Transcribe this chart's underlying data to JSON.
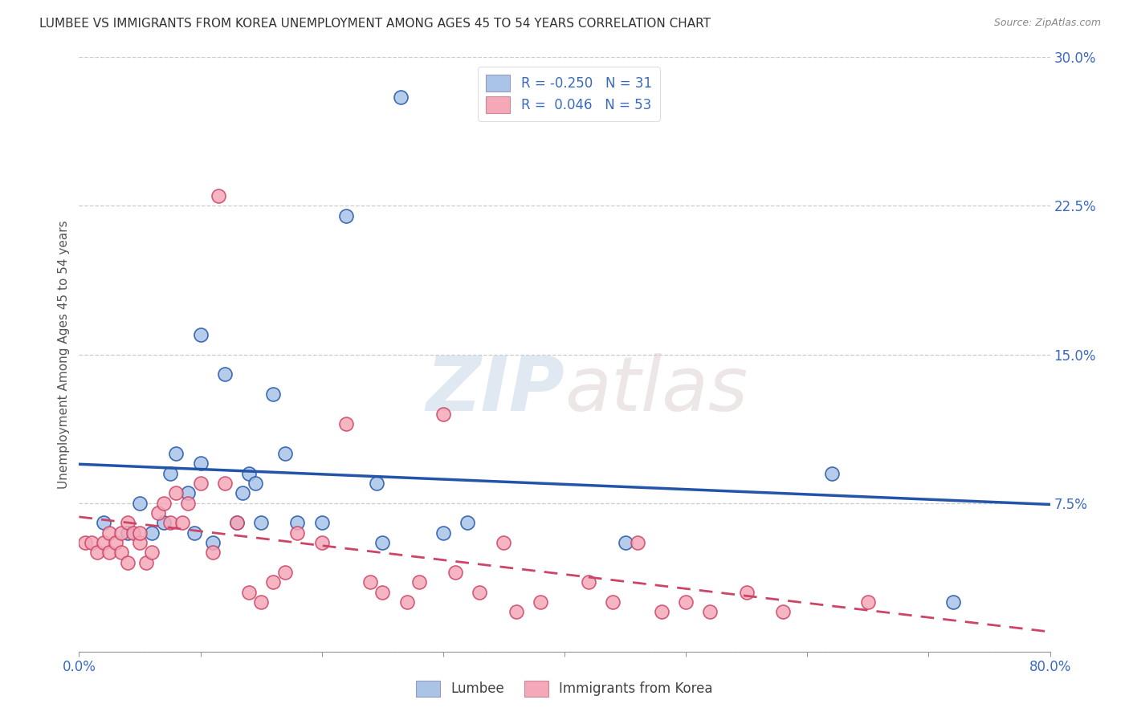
{
  "title": "LUMBEE VS IMMIGRANTS FROM KOREA UNEMPLOYMENT AMONG AGES 45 TO 54 YEARS CORRELATION CHART",
  "source": "Source: ZipAtlas.com",
  "ylabel": "Unemployment Among Ages 45 to 54 years",
  "xlabel_lumbee": "Lumbee",
  "xlabel_korea": "Immigrants from Korea",
  "xlim": [
    0.0,
    0.8
  ],
  "ylim": [
    0.0,
    0.3
  ],
  "xticks": [
    0.0,
    0.1,
    0.2,
    0.3,
    0.4,
    0.5,
    0.6,
    0.7,
    0.8
  ],
  "xticklabels": [
    "0.0%",
    "",
    "",
    "",
    "",
    "",
    "",
    "",
    "80.0%"
  ],
  "yticks": [
    0.0,
    0.075,
    0.15,
    0.225,
    0.3
  ],
  "yticklabels": [
    "",
    "7.5%",
    "15.0%",
    "22.5%",
    "30.0%"
  ],
  "grid_color": "#cccccc",
  "background_color": "#ffffff",
  "lumbee_color": "#aac4e8",
  "korea_color": "#f4a8b8",
  "lumbee_line_color": "#2255aa",
  "korea_line_color": "#cc4466",
  "legend_R_lumbee": "-0.250",
  "legend_N_lumbee": "31",
  "legend_R_korea": "0.046",
  "legend_N_korea": "53",
  "watermark_zip": "ZIP",
  "watermark_atlas": "atlas",
  "lumbee_x": [
    0.02,
    0.04,
    0.05,
    0.06,
    0.07,
    0.075,
    0.08,
    0.09,
    0.095,
    0.1,
    0.1,
    0.11,
    0.12,
    0.13,
    0.135,
    0.14,
    0.145,
    0.15,
    0.16,
    0.17,
    0.18,
    0.2,
    0.22,
    0.245,
    0.25,
    0.265,
    0.3,
    0.32,
    0.45,
    0.62,
    0.72
  ],
  "lumbee_y": [
    0.065,
    0.06,
    0.075,
    0.06,
    0.065,
    0.09,
    0.1,
    0.08,
    0.06,
    0.095,
    0.16,
    0.055,
    0.14,
    0.065,
    0.08,
    0.09,
    0.085,
    0.065,
    0.13,
    0.1,
    0.065,
    0.065,
    0.22,
    0.085,
    0.055,
    0.28,
    0.06,
    0.065,
    0.055,
    0.09,
    0.025
  ],
  "korea_x": [
    0.005,
    0.01,
    0.015,
    0.02,
    0.025,
    0.025,
    0.03,
    0.035,
    0.035,
    0.04,
    0.04,
    0.045,
    0.05,
    0.05,
    0.055,
    0.06,
    0.065,
    0.07,
    0.075,
    0.08,
    0.085,
    0.09,
    0.1,
    0.11,
    0.115,
    0.12,
    0.13,
    0.14,
    0.15,
    0.16,
    0.17,
    0.18,
    0.2,
    0.22,
    0.24,
    0.25,
    0.27,
    0.28,
    0.3,
    0.31,
    0.33,
    0.35,
    0.36,
    0.38,
    0.42,
    0.44,
    0.46,
    0.48,
    0.5,
    0.52,
    0.55,
    0.58,
    0.65
  ],
  "korea_y": [
    0.055,
    0.055,
    0.05,
    0.055,
    0.06,
    0.05,
    0.055,
    0.06,
    0.05,
    0.045,
    0.065,
    0.06,
    0.055,
    0.06,
    0.045,
    0.05,
    0.07,
    0.075,
    0.065,
    0.08,
    0.065,
    0.075,
    0.085,
    0.05,
    0.23,
    0.085,
    0.065,
    0.03,
    0.025,
    0.035,
    0.04,
    0.06,
    0.055,
    0.115,
    0.035,
    0.03,
    0.025,
    0.035,
    0.12,
    0.04,
    0.03,
    0.055,
    0.02,
    0.025,
    0.035,
    0.025,
    0.055,
    0.02,
    0.025,
    0.02,
    0.03,
    0.02,
    0.025
  ]
}
